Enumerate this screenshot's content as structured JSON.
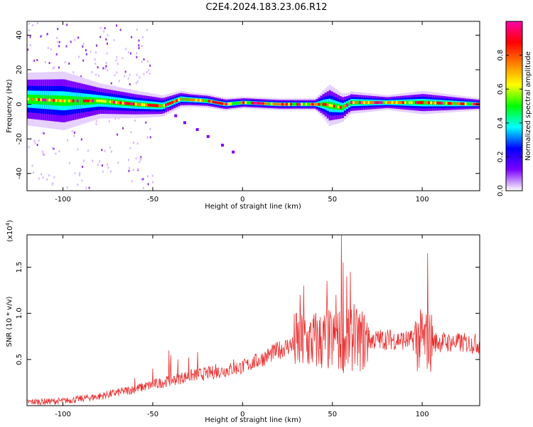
{
  "figure": {
    "title": "C2E4.2024.183.23.06.R12"
  },
  "chart_data": [
    {
      "type": "heatmap",
      "name": "spectrogram",
      "xlabel": "Height of straight line (km)",
      "ylabel": "Frequency (Hz)",
      "xlim": [
        -120,
        132
      ],
      "ylim": [
        -50,
        48
      ],
      "xticks": [
        -100,
        -50,
        0,
        50,
        100
      ],
      "yticks": [
        -40,
        -20,
        0,
        20,
        40
      ],
      "colorbar": {
        "label": "Normalized spectral amplitude",
        "range": [
          0.0,
          1.0
        ],
        "ticks": [
          0.0,
          0.2,
          0.4,
          0.6,
          0.8
        ],
        "tick_labels": [
          "0.0",
          "0.2",
          "0.4",
          "0.6",
          "0.8"
        ],
        "colormap": [
          "#ffffff",
          "#7a00ff",
          "#0000ff",
          "#00ffff",
          "#00ff00",
          "#ffff00",
          "#ff7f00",
          "#ff0000",
          "#ff00aa"
        ]
      },
      "band_center_hz": [
        {
          "x": -120,
          "f": 3
        },
        {
          "x": -100,
          "f": 2
        },
        {
          "x": -80,
          "f": 2
        },
        {
          "x": -60,
          "f": 0
        },
        {
          "x": -45,
          "f": -1
        },
        {
          "x": -35,
          "f": 3
        },
        {
          "x": -20,
          "f": 2
        },
        {
          "x": -10,
          "f": 0
        },
        {
          "x": 0,
          "f": 1
        },
        {
          "x": 20,
          "f": 0
        },
        {
          "x": 45,
          "f": 0
        },
        {
          "x": 55,
          "f": -2
        },
        {
          "x": 60,
          "f": 1
        },
        {
          "x": 90,
          "f": 1
        },
        {
          "x": 100,
          "f": 1
        },
        {
          "x": 132,
          "f": 0
        }
      ],
      "band_halfwidth_hz": [
        {
          "x": -120,
          "w": 9
        },
        {
          "x": -100,
          "w": 10
        },
        {
          "x": -80,
          "w": 6
        },
        {
          "x": -50,
          "w": 4
        },
        {
          "x": -30,
          "w": 2.5
        },
        {
          "x": 0,
          "w": 2
        },
        {
          "x": 40,
          "w": 2
        },
        {
          "x": 48,
          "w": 7
        },
        {
          "x": 58,
          "w": 4
        },
        {
          "x": 80,
          "w": 2.5
        },
        {
          "x": 100,
          "w": 4
        },
        {
          "x": 132,
          "w": 2
        }
      ],
      "branch_hz": [
        {
          "x": -43,
          "f": -3
        },
        {
          "x": -38,
          "f": -7
        },
        {
          "x": -33,
          "f": -11
        },
        {
          "x": -26,
          "f": -15
        },
        {
          "x": -20,
          "f": -19
        },
        {
          "x": -12,
          "f": -24
        },
        {
          "x": -6,
          "f": -28
        }
      ]
    },
    {
      "type": "line",
      "name": "snr",
      "xlabel": "Height of straight line (km)",
      "ylabel": "SNR (10 * v/v)",
      "y_multiplier": "(x10",
      "y_multiplier_exp": "4",
      "y_multiplier_close": ")",
      "xlim": [
        -120,
        132
      ],
      "ylim": [
        0,
        1.85
      ],
      "xticks": [
        -100,
        -50,
        0,
        50,
        100
      ],
      "yticks": [
        0.5,
        1.0,
        1.5
      ],
      "ytick_labels": [
        "0.5",
        "1.0",
        "1.5"
      ],
      "color": "#e83030",
      "trend": [
        {
          "x": -120,
          "y": 0.04
        },
        {
          "x": -100,
          "y": 0.05
        },
        {
          "x": -80,
          "y": 0.1
        },
        {
          "x": -60,
          "y": 0.18
        },
        {
          "x": -45,
          "y": 0.25
        },
        {
          "x": -30,
          "y": 0.32
        },
        {
          "x": -10,
          "y": 0.38
        },
        {
          "x": 0,
          "y": 0.42
        },
        {
          "x": 10,
          "y": 0.5
        },
        {
          "x": 20,
          "y": 0.6
        },
        {
          "x": 28,
          "y": 0.67
        },
        {
          "x": 40,
          "y": 0.7
        },
        {
          "x": 60,
          "y": 0.7
        },
        {
          "x": 80,
          "y": 0.72
        },
        {
          "x": 100,
          "y": 0.7
        },
        {
          "x": 132,
          "y": 0.67
        }
      ],
      "spikes": [
        {
          "x": -60,
          "y": 0.3
        },
        {
          "x": -50,
          "y": 0.4
        },
        {
          "x": -41,
          "y": 0.6
        },
        {
          "x": -40,
          "y": 0.55
        },
        {
          "x": -36,
          "y": 0.5
        },
        {
          "x": -30,
          "y": 0.52
        },
        {
          "x": -25,
          "y": 0.58
        },
        {
          "x": -15,
          "y": 0.45
        },
        {
          "x": -5,
          "y": 0.5
        },
        {
          "x": 30,
          "y": 1.0
        },
        {
          "x": 32,
          "y": 1.2
        },
        {
          "x": 34,
          "y": 1.3
        },
        {
          "x": 47,
          "y": 1.35
        },
        {
          "x": 52,
          "y": 1.2
        },
        {
          "x": 55,
          "y": 1.85
        },
        {
          "x": 56,
          "y": 1.55
        },
        {
          "x": 58,
          "y": 1.4
        },
        {
          "x": 60,
          "y": 1.45
        },
        {
          "x": 62,
          "y": 1.1
        },
        {
          "x": 66,
          "y": 0.9
        },
        {
          "x": 70,
          "y": 0.85
        },
        {
          "x": 103,
          "y": 1.65
        },
        {
          "x": 100,
          "y": 1.0
        },
        {
          "x": 97,
          "y": 0.9
        }
      ]
    }
  ]
}
